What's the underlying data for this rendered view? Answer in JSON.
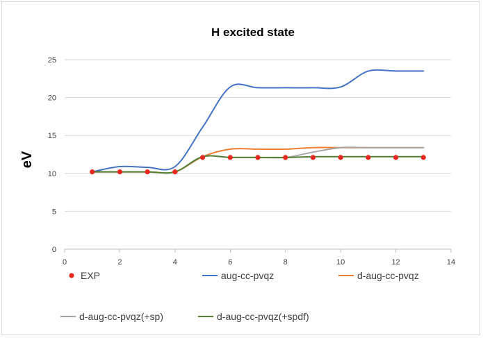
{
  "chart_data": {
    "type": "line",
    "title": "H excited state",
    "xlabel": "",
    "ylabel": "eV",
    "xlim": [
      0,
      14
    ],
    "ylim": [
      0,
      25
    ],
    "x_ticks": [
      0,
      2,
      4,
      6,
      8,
      10,
      12,
      14
    ],
    "y_ticks": [
      0,
      5,
      10,
      15,
      20,
      25
    ],
    "grid": "horizontal",
    "legend_position": "bottom",
    "x": [
      1,
      2,
      3,
      4,
      5,
      6,
      7,
      8,
      9,
      10,
      11,
      12,
      13
    ],
    "series": [
      {
        "name": "EXP",
        "style": "markers",
        "color": "#e8281e",
        "values": [
          10.2,
          10.2,
          10.2,
          10.2,
          12.1,
          12.1,
          12.1,
          12.1,
          12.1,
          12.1,
          12.1,
          12.1,
          12.1
        ]
      },
      {
        "name": "aug-cc-pvqz",
        "style": "line",
        "color": "#4472c4",
        "values": [
          10.2,
          10.9,
          10.8,
          10.9,
          16.1,
          21.4,
          21.3,
          21.3,
          21.3,
          21.4,
          23.5,
          23.5,
          23.5
        ]
      },
      {
        "name": "d-aug-cc-pvqz",
        "style": "line",
        "color": "#ed7d31",
        "values": [
          10.2,
          10.2,
          10.2,
          10.2,
          12.2,
          13.2,
          13.2,
          13.2,
          13.4,
          13.4,
          13.4,
          13.4,
          13.4
        ]
      },
      {
        "name": "d-aug-cc-pvqz(+sp)",
        "style": "line",
        "color": "#a5a5a5",
        "values": [
          10.2,
          10.2,
          10.2,
          10.2,
          12.2,
          12.1,
          12.1,
          12.1,
          12.8,
          13.4,
          13.4,
          13.4,
          13.4
        ]
      },
      {
        "name": "d-aug-cc-pvqz(+spdf)",
        "style": "line",
        "color": "#548235",
        "values": [
          10.2,
          10.2,
          10.2,
          10.2,
          12.2,
          12.1,
          12.1,
          12.1,
          12.2,
          12.2,
          12.2,
          12.2,
          12.2
        ]
      }
    ]
  }
}
